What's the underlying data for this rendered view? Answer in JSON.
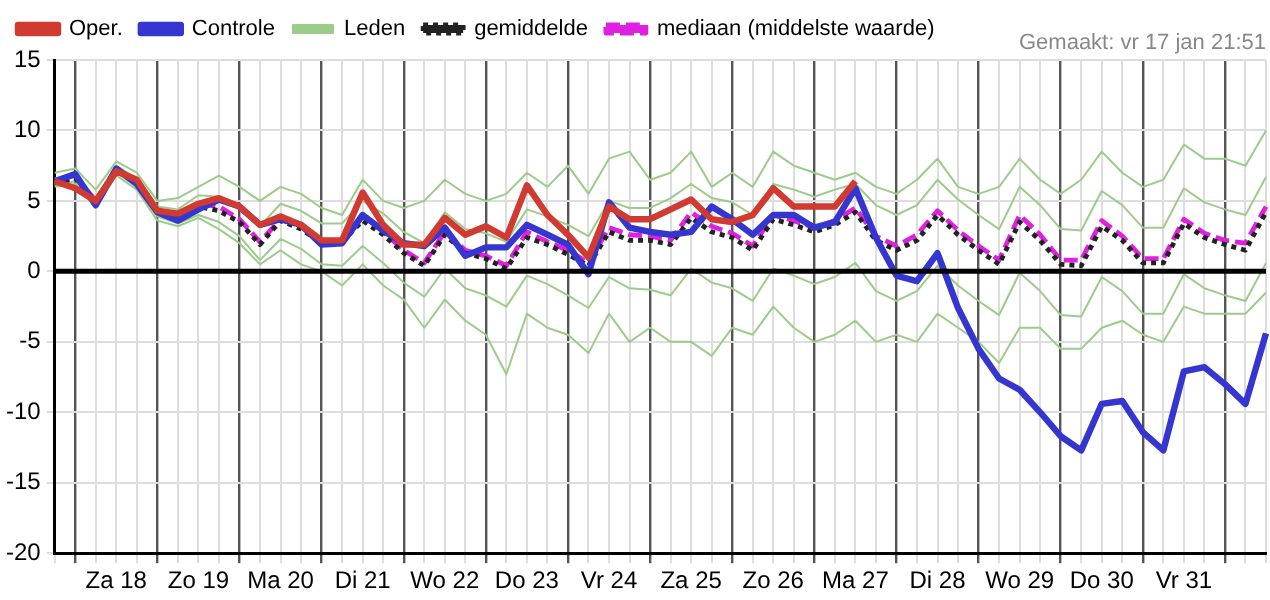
{
  "chart_data": {
    "type": "line",
    "categories": [
      null,
      null,
      null,
      "Za 18",
      null,
      null,
      null,
      "Zo 19",
      null,
      null,
      null,
      "Ma 20",
      null,
      null,
      null,
      "Di 21",
      null,
      null,
      null,
      "Wo 22",
      null,
      null,
      null,
      "Do 23",
      null,
      null,
      null,
      "Vr 24",
      null,
      null,
      null,
      "Za 25",
      null,
      null,
      null,
      "Zo 26",
      null,
      null,
      null,
      "Ma 27",
      null,
      null,
      null,
      "Di 28",
      null,
      null,
      null,
      "Wo 29",
      null,
      null,
      null,
      "Do 30",
      null,
      null,
      null,
      "Vr 31",
      null,
      null,
      null,
      null
    ],
    "series": [
      {
        "name": "Oper.",
        "color": "#d03a30",
        "line_style": "solid",
        "values": [
          6.4,
          5.9,
          5.0,
          7.1,
          6.5,
          4.3,
          4.1,
          4.8,
          5.2,
          4.6,
          3.3,
          3.9,
          3.3,
          2.2,
          2.2,
          5.6,
          3.3,
          1.9,
          1.9,
          3.8,
          2.6,
          3.2,
          2.4,
          6.1,
          4.0,
          2.6,
          1.0,
          4.6,
          3.7,
          3.7,
          4.4,
          5.1,
          3.7,
          3.5,
          4.0,
          5.9,
          4.6,
          4.6,
          4.6,
          6.4,
          null,
          null,
          null,
          null,
          null,
          null,
          null,
          null,
          null,
          null,
          null,
          null,
          null,
          null,
          null,
          null,
          null,
          null,
          null,
          null
        ]
      },
      {
        "name": "Controle",
        "color": "#3535d0",
        "line_style": "solid",
        "values": [
          6.4,
          6.9,
          4.7,
          7.3,
          6.2,
          4.2,
          3.6,
          4.4,
          5.1,
          4.6,
          3.3,
          3.7,
          3.3,
          1.9,
          2.0,
          4.0,
          2.9,
          2.0,
          1.8,
          3.1,
          1.1,
          1.7,
          1.7,
          3.3,
          2.6,
          1.9,
          -0.2,
          4.9,
          3.1,
          2.8,
          2.6,
          2.8,
          4.6,
          3.7,
          2.6,
          4.0,
          4.0,
          3.1,
          3.5,
          5.9,
          2.4,
          -0.3,
          -0.7,
          1.3,
          -2.6,
          -5.5,
          -7.6,
          -8.4,
          -10.0,
          -11.7,
          -12.7,
          -9.4,
          -9.2,
          -11.4,
          -12.7,
          -7.1,
          -6.8,
          -8.0,
          -9.4,
          -4.4
        ]
      },
      {
        "name": "Leden",
        "color": "#9ccc8a",
        "line_style": "solid",
        "values": [
          7.0,
          7.3,
          5.8,
          7.8,
          7.0,
          5.0,
          5.2,
          6.0,
          6.8,
          6.0,
          5.0,
          6.0,
          5.5,
          4.5,
          4.0,
          6.5,
          5.0,
          4.5,
          5.0,
          6.5,
          5.5,
          5.0,
          5.5,
          7.0,
          6.0,
          7.5,
          5.5,
          8.0,
          8.5,
          6.5,
          7.0,
          8.5,
          6.0,
          7.0,
          6.0,
          8.5,
          7.5,
          7.0,
          6.5,
          7.0,
          6.0,
          5.5,
          6.5,
          8.0,
          6.0,
          5.5,
          6.0,
          8.0,
          6.5,
          5.5,
          6.5,
          8.5,
          7.0,
          6.0,
          6.5,
          9.0,
          8.0,
          8.0,
          7.5,
          10.0
        ]
      },
      {
        "color": "#9ccc8a",
        "line_style": "solid",
        "values": [
          6.0,
          6.2,
          4.5,
          6.8,
          5.8,
          3.6,
          3.2,
          3.8,
          3.0,
          2.0,
          0.5,
          1.5,
          0.5,
          0.0,
          -1.0,
          0.5,
          -1.0,
          -2.0,
          -4.0,
          -2.0,
          -3.5,
          -4.5,
          -7.3,
          -3.0,
          -4.0,
          -4.5,
          -5.8,
          -3.0,
          -5.0,
          -4.0,
          -5.0,
          -5.0,
          -6.0,
          -4.0,
          -4.5,
          -2.5,
          -4.0,
          -5.0,
          -4.5,
          -3.5,
          -5.0,
          -4.5,
          -5.0,
          -3.0,
          -4.0,
          -5.0,
          -6.5,
          -4.0,
          -4.0,
          -5.5,
          -5.5,
          -4.0,
          -3.5,
          -4.5,
          -5.0,
          -2.5,
          -3.0,
          -3.0,
          -3.0,
          -1.5
        ]
      },
      {
        "color": "#9ccc8a",
        "line_style": "solid",
        "values": [
          6.6,
          6.9,
          5.2,
          7.5,
          6.6,
          4.6,
          4.4,
          5.4,
          5.3,
          4.6,
          3.2,
          4.8,
          4.3,
          3.4,
          3.4,
          5.0,
          4.1,
          2.8,
          2.0,
          4.2,
          3.0,
          2.7,
          2.1,
          4.4,
          3.9,
          3.3,
          2.5,
          5.0,
          4.5,
          4.5,
          5.2,
          6.2,
          5.2,
          4.9,
          4.0,
          6.2,
          5.8,
          5.3,
          5.8,
          6.2,
          4.7,
          4.0,
          4.7,
          6.5,
          5.1,
          4.0,
          3.0,
          6.0,
          4.7,
          3.0,
          2.9,
          5.7,
          4.7,
          3.1,
          3.1,
          5.9,
          4.9,
          4.4,
          4.0,
          6.7
        ]
      },
      {
        "color": "#9ccc8a",
        "line_style": "solid",
        "values": [
          6.1,
          6.4,
          4.6,
          7.0,
          6.0,
          3.9,
          3.4,
          4.0,
          3.5,
          2.5,
          0.8,
          2.3,
          1.6,
          0.5,
          0.4,
          1.8,
          0.6,
          -0.8,
          -1.8,
          0.2,
          -1.2,
          -1.7,
          -2.5,
          -0.3,
          -0.9,
          -1.7,
          -2.6,
          -0.4,
          -1.2,
          -1.3,
          -1.7,
          0.2,
          -0.8,
          -1.2,
          -2.1,
          0.2,
          -0.3,
          -0.9,
          -0.4,
          0.6,
          -1.4,
          -2.1,
          -1.4,
          0.4,
          -1.0,
          -2.1,
          -3.1,
          -0.1,
          -1.4,
          -3.1,
          -3.2,
          -0.4,
          -1.4,
          -3.0,
          -3.0,
          -0.2,
          -1.2,
          -1.7,
          -2.1,
          0.6
        ]
      },
      {
        "name": "gemiddelde",
        "color": "#222222",
        "line_style": "dotted",
        "values": [
          6.3,
          6.6,
          4.9,
          7.2,
          6.3,
          4.2,
          3.8,
          4.6,
          4.3,
          3.5,
          1.9,
          3.6,
          3.0,
          2.0,
          2.1,
          3.6,
          2.6,
          1.3,
          0.4,
          2.6,
          1.3,
          0.9,
          0.2,
          2.4,
          1.9,
          1.2,
          0.4,
          2.8,
          2.2,
          2.2,
          1.9,
          3.8,
          2.8,
          2.4,
          1.5,
          3.7,
          3.3,
          2.8,
          3.3,
          4.2,
          2.2,
          1.5,
          2.2,
          4.0,
          2.6,
          1.5,
          0.5,
          3.5,
          2.2,
          0.5,
          0.4,
          3.2,
          2.2,
          0.6,
          0.6,
          3.4,
          2.4,
          1.9,
          1.5,
          4.2
        ]
      },
      {
        "name": "mediaan (middelste waarde)",
        "color": "#e020e0",
        "line_style": "dashed",
        "values": [
          6.3,
          6.7,
          5.0,
          7.3,
          6.4,
          4.3,
          3.9,
          4.8,
          4.6,
          3.7,
          2.1,
          3.7,
          3.2,
          2.1,
          2.2,
          4.0,
          2.8,
          1.5,
          0.6,
          2.8,
          1.5,
          1.1,
          0.4,
          2.8,
          2.1,
          1.5,
          0.6,
          3.1,
          2.6,
          2.5,
          2.2,
          4.2,
          3.2,
          2.7,
          1.8,
          4.0,
          3.6,
          3.1,
          3.6,
          4.5,
          2.5,
          1.8,
          2.6,
          4.3,
          2.9,
          1.8,
          0.8,
          4.0,
          2.6,
          0.8,
          0.8,
          3.6,
          2.5,
          0.9,
          0.9,
          3.7,
          2.7,
          2.2,
          2.0,
          4.6
        ]
      }
    ],
    "ylim": [
      -20,
      15
    ],
    "yticks": [
      -20,
      -15,
      -10,
      -5,
      0,
      5,
      10,
      15
    ],
    "ref_lines": [
      {
        "axis": "y",
        "value": 0,
        "color": "#000000"
      }
    ],
    "annotations": [
      "Gemaakt: vr 17 jan 21:51"
    ],
    "grid": true,
    "legend": "top",
    "marker": "none"
  }
}
